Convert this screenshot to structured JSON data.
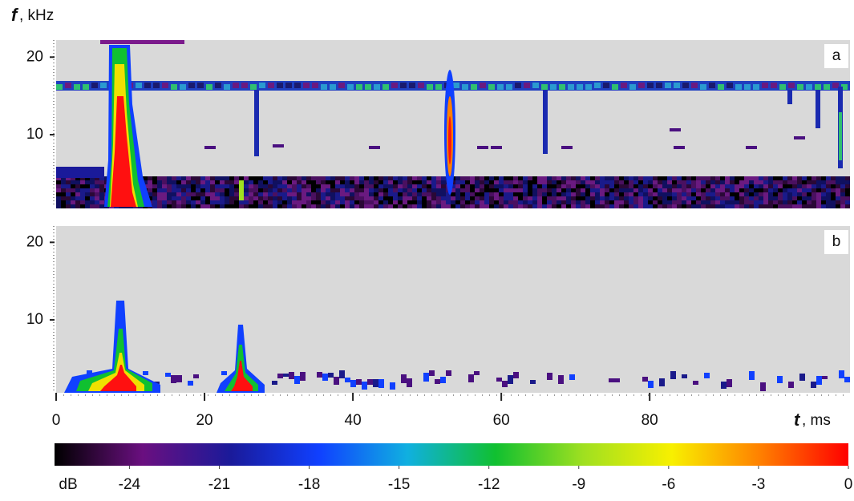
{
  "chart_data": [
    {
      "type": "heatmap",
      "panel_label": "a",
      "ylim": [
        0.7,
        22.2
      ],
      "yticks": [
        10,
        20
      ],
      "y_label_symbol": "f",
      "y_label_unit": ", kHz"
    },
    {
      "type": "heatmap",
      "panel_label": "b",
      "ylim": [
        0.6,
        22.1
      ],
      "yticks": [
        10,
        20
      ],
      "xlim": [
        0,
        107
      ],
      "xticks": [
        0,
        20,
        40,
        60,
        80
      ],
      "x_label_symbol": "t",
      "x_label_unit": ", ms"
    },
    {
      "type": "colorbar",
      "unit_label": "dB",
      "xlim": [
        -26.5,
        0
      ],
      "xticks": [
        -24,
        -21,
        -18,
        -15,
        -12,
        -9,
        -6,
        -3,
        0
      ],
      "colors": [
        "#000000",
        "#6a0f80",
        "#1a1a9a",
        "#1040ff",
        "#10b0e0",
        "#10c030",
        "#a0e020",
        "#f8f000",
        "#ff8000",
        "#ff0000"
      ]
    }
  ]
}
